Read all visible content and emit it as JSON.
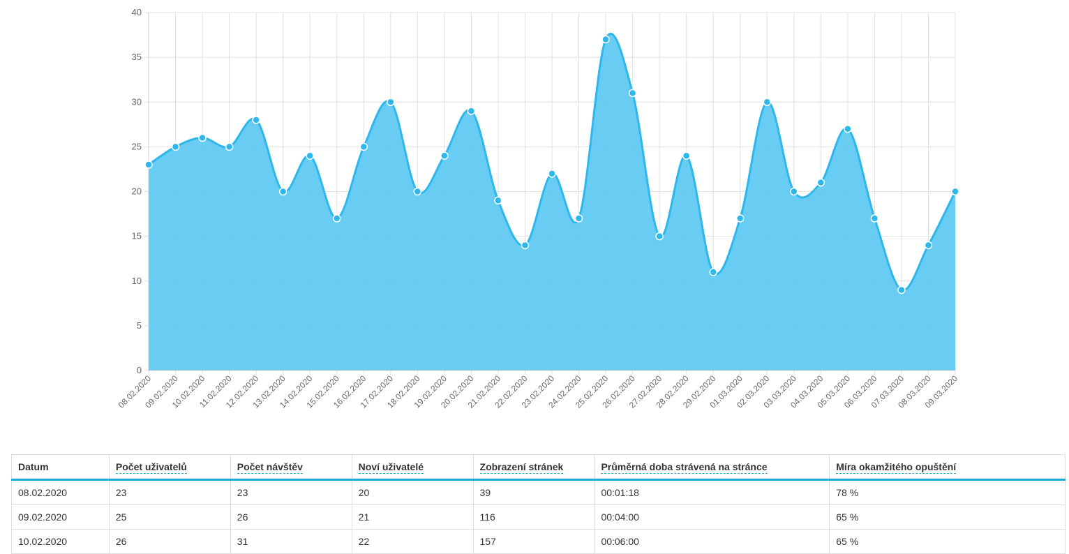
{
  "chart_data": {
    "type": "area",
    "x": [
      "08.02.2020",
      "09.02.2020",
      "10.02.2020",
      "11.02.2020",
      "12.02.2020",
      "13.02.2020",
      "14.02.2020",
      "15.02.2020",
      "16.02.2020",
      "17.02.2020",
      "18.02.2020",
      "19.02.2020",
      "20.02.2020",
      "21.02.2020",
      "22.02.2020",
      "23.02.2020",
      "24.02.2020",
      "25.02.2020",
      "26.02.2020",
      "27.02.2020",
      "28.02.2020",
      "29.02.2020",
      "01.03.2020",
      "02.03.2020",
      "03.03.2020",
      "04.03.2020",
      "05.03.2020",
      "06.03.2020",
      "07.03.2020",
      "08.03.2020",
      "09.03.2020"
    ],
    "series": [
      {
        "values": [
          23,
          25,
          26,
          25,
          28,
          20,
          24,
          17,
          25,
          30,
          20,
          24,
          29,
          19,
          14,
          22,
          17,
          37,
          31,
          15,
          24,
          11,
          17,
          30,
          20,
          21,
          27,
          17,
          9,
          14,
          20
        ]
      }
    ],
    "ylim": [
      0,
      40
    ],
    "yticks": [
      0,
      5,
      10,
      15,
      20,
      25,
      30,
      35,
      40
    ],
    "grid": true,
    "legend": "none",
    "colors": {
      "fill": "#5bc8f2",
      "line": "#2db7ea",
      "grid": "#e0e0e0"
    }
  },
  "table": {
    "headers": [
      {
        "label": "Datum",
        "dashed": false
      },
      {
        "label": "Počet uživatelů",
        "dashed": true
      },
      {
        "label": "Počet návštěv",
        "dashed": true
      },
      {
        "label": "Noví uživatelé",
        "dashed": true
      },
      {
        "label": "Zobrazení stránek",
        "dashed": true
      },
      {
        "label": "Průměrná doba strávená na stránce",
        "dashed": true
      },
      {
        "label": "Míra okamžitého opuštění",
        "dashed": true
      }
    ],
    "rows": [
      [
        "08.02.2020",
        "23",
        "23",
        "20",
        "39",
        "00:01:18",
        "78 %"
      ],
      [
        "09.02.2020",
        "25",
        "26",
        "21",
        "116",
        "00:04:00",
        "65 %"
      ],
      [
        "10.02.2020",
        "26",
        "31",
        "22",
        "157",
        "00:06:00",
        "65 %"
      ]
    ]
  }
}
